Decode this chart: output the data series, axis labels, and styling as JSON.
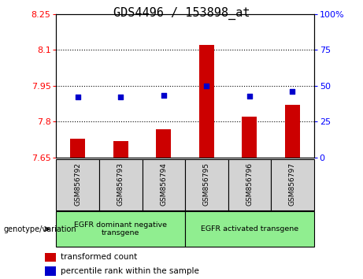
{
  "title": "GDS4496 / 153898_at",
  "samples": [
    "GSM856792",
    "GSM856793",
    "GSM856794",
    "GSM856795",
    "GSM856796",
    "GSM856797"
  ],
  "bar_values": [
    7.73,
    7.72,
    7.77,
    8.12,
    7.82,
    7.87
  ],
  "dot_values_left": [
    7.905,
    7.905,
    7.91,
    7.95,
    7.908,
    7.925
  ],
  "ylim_left": [
    7.65,
    8.25
  ],
  "yticks_left": [
    7.65,
    7.8,
    7.95,
    8.1,
    8.25
  ],
  "ytick_labels_left": [
    "7.65",
    "7.8",
    "7.95",
    "8.1",
    "8.25"
  ],
  "yticks_right": [
    0,
    25,
    50,
    75,
    100
  ],
  "ytick_labels_right": [
    "0",
    "25",
    "50",
    "75",
    "100%"
  ],
  "hlines": [
    7.8,
    7.95,
    8.1
  ],
  "bar_color": "#cc0000",
  "dot_color": "#0000cc",
  "group1_label": "EGFR dominant negative\ntransgene",
  "group2_label": "EGFR activated transgene",
  "group_bg_color": "#90ee90",
  "sample_bg_color": "#d3d3d3",
  "legend_bar_label": "transformed count",
  "legend_dot_label": "percentile rank within the sample",
  "genotype_label": "genotype/variation",
  "title_fontsize": 11,
  "tick_fontsize": 8,
  "label_fontsize": 8
}
